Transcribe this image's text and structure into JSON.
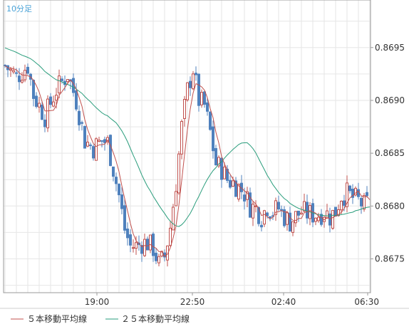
{
  "chart_data": {
    "type": "candlestick",
    "title": "10分足",
    "x_tick_labels": [
      "19:00",
      "22:50",
      "02:40",
      "06:30"
    ],
    "y_tick_labels": [
      "0.8675",
      "0.8680",
      "0.8685",
      "0.8690",
      "0.8695"
    ],
    "ylim": [
      0.86718,
      0.86995
    ],
    "grid": true,
    "legend_position": "bottom-left",
    "colors": {
      "up": "#c0504d",
      "down": "#4f81bd",
      "ma5": "#c0504d",
      "ma25": "#2a9d7c",
      "grid": "#e6e6e6",
      "title": "#4aa3d8"
    },
    "series": [
      {
        "name": "５本移動平均線",
        "color": "#c0504d"
      },
      {
        "name": "２５本移動平均線",
        "color": "#2a9d7c"
      }
    ]
  }
}
